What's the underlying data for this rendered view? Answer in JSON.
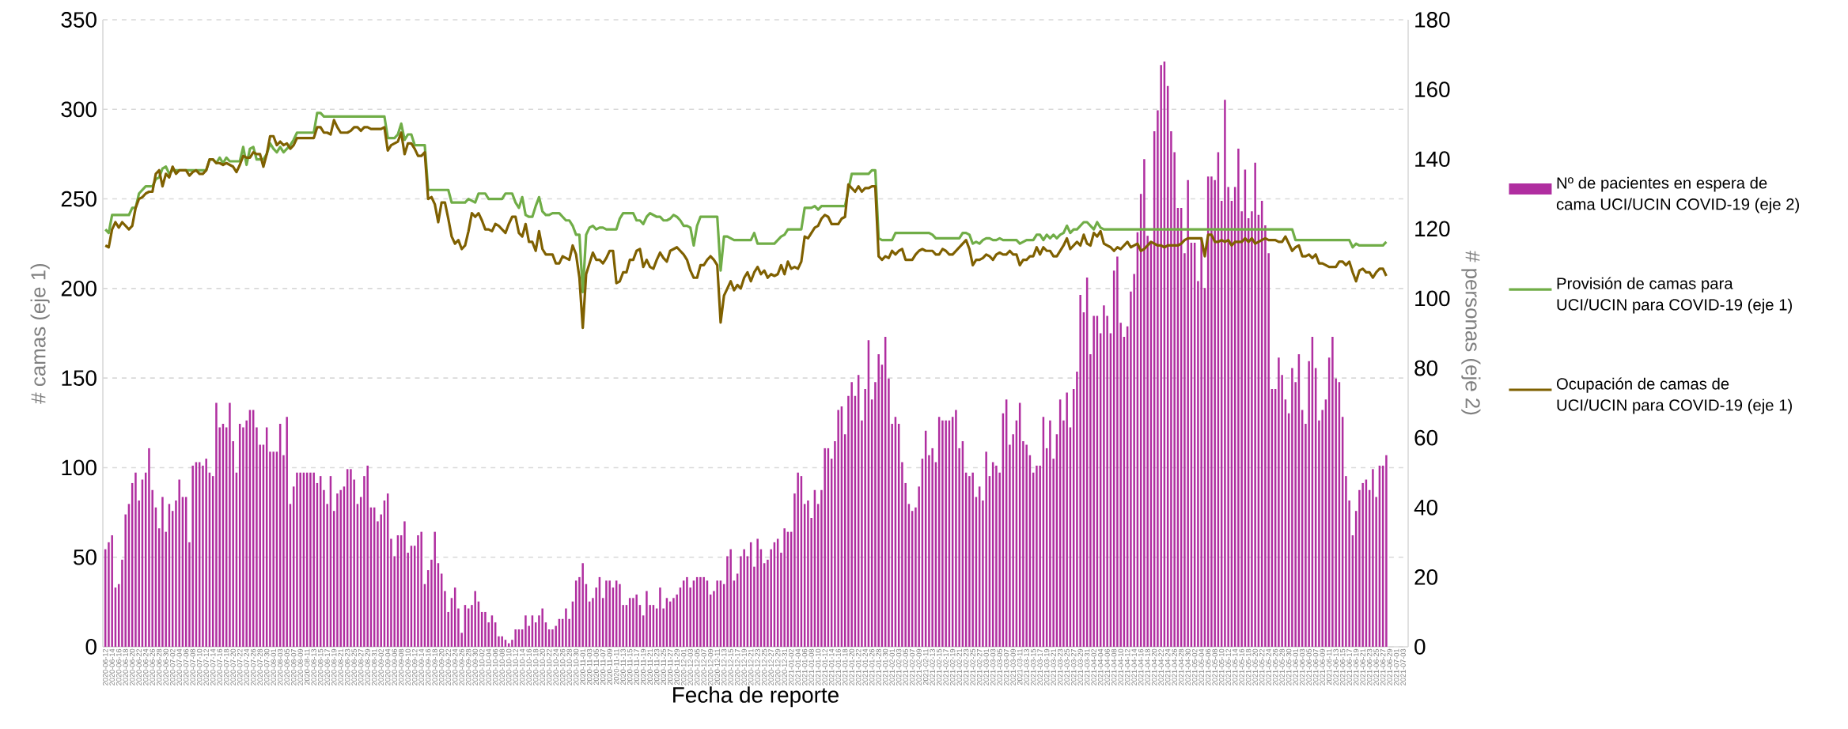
{
  "chart_data": {
    "type": "bar",
    "xlabel": "Fecha de reporte",
    "ylabel": "# camas (eje 1)",
    "y2label": "# personas (eje 2)",
    "grid": "y",
    "legend": "right",
    "ylim": [
      0,
      350
    ],
    "yticks": [
      0,
      50,
      100,
      150,
      200,
      250,
      300,
      350
    ],
    "y2lim": [
      0,
      180
    ],
    "y2ticks": [
      0,
      20,
      40,
      60,
      80,
      100,
      120,
      140,
      160,
      180
    ],
    "categories": [
      "2020-06-12",
      null,
      "2020-06-14",
      null,
      "2020-06-16",
      null,
      "2020-06-18",
      null,
      "2020-06-20",
      null,
      "2020-06-22",
      null,
      "2020-06-24",
      null,
      "2020-06-26",
      null,
      "2020-06-28",
      null,
      "2020-06-30",
      null,
      "2020-07-02",
      null,
      "2020-07-04",
      null,
      "2020-07-06",
      null,
      "2020-07-08",
      null,
      "2020-07-10",
      null,
      "2020-07-12",
      null,
      "2020-07-14",
      null,
      "2020-07-16",
      null,
      "2020-07-18",
      null,
      "2020-07-20",
      null,
      "2020-07-22",
      null,
      "2020-07-24",
      null,
      "2020-07-26",
      null,
      "2020-07-28",
      null,
      "2020-07-30",
      null,
      "2020-08-01",
      null,
      "2020-08-03",
      null,
      "2020-08-05",
      null,
      "2020-08-07",
      null,
      "2020-08-09",
      null,
      "2020-08-11",
      null,
      "2020-08-13",
      null,
      "2020-08-15",
      null,
      "2020-08-17",
      null,
      "2020-08-19",
      null,
      "2020-08-21",
      null,
      "2020-08-23",
      null,
      "2020-08-25",
      null,
      "2020-08-27",
      null,
      "2020-08-29",
      null,
      "2020-08-31",
      null,
      "2020-09-02",
      null,
      "2020-09-04",
      null,
      "2020-09-06",
      null,
      "2020-09-08",
      null,
      "2020-09-10",
      null,
      "2020-09-12",
      null,
      "2020-09-14",
      null,
      "2020-09-16",
      null,
      "2020-09-18",
      null,
      "2020-09-20",
      null,
      "2020-09-22",
      null,
      "2020-09-24",
      null,
      "2020-09-26",
      null,
      "2020-09-28",
      null,
      "2020-09-30",
      null,
      "2020-10-02",
      null,
      "2020-10-04",
      null,
      "2020-10-06",
      null,
      "2020-10-08",
      null,
      "2020-10-10",
      null,
      "2020-10-12",
      null,
      "2020-10-14",
      null,
      "2020-10-16",
      null,
      "2020-10-18",
      null,
      "2020-10-20",
      null,
      "2020-10-22",
      null,
      "2020-10-24",
      null,
      "2020-10-26",
      null,
      "2020-10-28",
      null,
      "2020-10-30",
      null,
      "2020-11-01",
      null,
      "2020-11-03",
      null,
      "2020-11-05",
      null,
      "2020-11-07",
      null,
      "2020-11-09",
      null,
      "2020-11-11",
      null,
      "2020-11-13",
      null,
      "2020-11-15",
      null,
      "2020-11-17",
      null,
      "2020-11-19",
      null,
      "2020-11-21",
      null,
      "2020-11-23",
      null,
      "2020-11-25",
      null,
      "2020-11-27",
      null,
      "2020-11-29",
      null,
      "2020-12-01",
      null,
      "2020-12-03",
      null,
      "2020-12-05",
      null,
      "2020-12-07",
      null,
      "2020-12-09",
      null,
      "2020-12-11",
      null,
      "2020-12-13",
      null,
      "2020-12-15",
      null,
      "2020-12-17",
      null,
      "2020-12-19",
      null,
      "2020-12-21",
      null,
      "2020-12-23",
      null,
      "2020-12-25",
      null,
      "2020-12-27",
      null,
      "2020-12-29",
      null,
      "2020-12-31",
      null,
      "2021-01-02",
      null,
      "2021-01-04",
      null,
      "2021-01-06",
      null,
      "2021-01-08",
      null,
      "2021-01-10",
      null,
      "2021-01-12",
      null,
      "2021-01-14",
      null,
      "2021-01-16",
      null,
      "2021-01-18",
      null,
      "2021-01-20",
      null,
      "2021-01-22",
      null,
      "2021-01-24",
      null,
      "2021-01-26",
      null,
      "2021-01-28",
      null,
      "2021-01-30",
      null,
      "2021-02-01",
      null,
      "2021-02-03",
      null,
      "2021-02-05",
      null,
      "2021-02-07",
      null,
      "2021-02-09",
      null,
      "2021-02-11",
      null,
      "2021-02-13",
      null,
      "2021-02-15",
      null,
      "2021-02-17",
      null,
      "2021-02-19",
      null,
      "2021-02-21",
      null,
      "2021-02-23",
      null,
      "2021-02-25",
      null,
      "2021-02-27",
      null,
      "2021-03-01",
      null,
      "2021-03-03",
      null,
      "2021-03-05",
      null,
      "2021-03-07",
      null,
      "2021-03-09",
      null,
      "2021-03-11",
      null,
      "2021-03-13",
      null,
      "2021-03-15",
      null,
      "2021-03-17",
      null,
      "2021-03-19",
      null,
      "2021-03-21",
      null,
      "2021-03-23",
      null,
      "2021-03-25",
      null,
      "2021-03-27",
      null,
      "2021-03-29",
      null,
      "2021-03-31",
      null,
      "2021-04-02",
      null,
      "2021-04-04",
      null,
      "2021-04-06",
      null,
      "2021-04-08",
      null,
      "2021-04-10",
      null,
      "2021-04-12",
      null,
      "2021-04-14",
      null,
      "2021-04-16",
      null,
      "2021-04-18",
      null,
      "2021-04-20",
      null,
      "2021-04-22",
      null,
      "2021-04-24",
      null,
      "2021-04-26",
      null,
      "2021-04-28",
      null,
      "2021-04-30",
      null,
      "2021-05-02",
      null,
      "2021-05-04",
      null,
      "2021-05-06",
      null,
      "2021-05-08",
      null,
      "2021-05-10",
      null,
      "2021-05-12",
      null,
      "2021-05-14",
      null,
      "2021-05-16",
      null,
      "2021-05-18",
      null,
      "2021-05-20",
      null,
      "2021-05-22",
      null,
      "2021-05-24",
      null,
      "2021-05-26",
      null,
      "2021-05-28",
      null,
      "2021-05-30",
      null,
      "2021-06-01",
      null,
      "2021-06-03",
      null,
      "2021-06-05",
      null,
      "2021-06-07",
      null,
      "2021-06-09",
      null,
      "2021-06-11",
      null,
      "2021-06-13",
      null,
      "2021-06-15",
      null,
      "2021-06-17",
      null,
      "2021-06-19",
      null,
      "2021-06-21",
      null,
      "2021-06-23",
      null,
      "2021-06-25",
      null,
      "2021-06-27",
      null,
      "2021-06-29",
      null,
      "2021-07-01",
      null,
      "2021-07-03"
    ],
    "series": [
      {
        "name": "Nº de pacientes en espera de cama UCI/UCIN COVID-19 (eje 2)",
        "axis": "y2",
        "color": "#B02EA0",
        "values": [
          28,
          30,
          32,
          17,
          18,
          25,
          38,
          41,
          47,
          50,
          42,
          48,
          50,
          57,
          45,
          40,
          34,
          43,
          33,
          41,
          39,
          42,
          48,
          43,
          43,
          30,
          52,
          53,
          53,
          52,
          54,
          50,
          49,
          70,
          63,
          64,
          63,
          70,
          59,
          50,
          64,
          63,
          65,
          68,
          68,
          63,
          58,
          58,
          63,
          56,
          56,
          56,
          64,
          55,
          66,
          41,
          46,
          50,
          50,
          50,
          50,
          50,
          50,
          47,
          49,
          45,
          41,
          49,
          39,
          44,
          45,
          46,
          51,
          51,
          48,
          41,
          43,
          49,
          52,
          40,
          40,
          36,
          38,
          42,
          44,
          31,
          26,
          32,
          32,
          36,
          27,
          29,
          29,
          32,
          33,
          18,
          22,
          25,
          33,
          24,
          21,
          16,
          10,
          14,
          17,
          11,
          4,
          12,
          11,
          12,
          16,
          13,
          10,
          10,
          7,
          9,
          7,
          3,
          3,
          2,
          1,
          2,
          5,
          5,
          5,
          9,
          6,
          9,
          7,
          9,
          11,
          7,
          5,
          5,
          6,
          8,
          8,
          11,
          8,
          13,
          19,
          20,
          24,
          18,
          13,
          14,
          17,
          20,
          14,
          19,
          19,
          17,
          19,
          18,
          12,
          12,
          14,
          14,
          15,
          12,
          9,
          16,
          12,
          12,
          11,
          17,
          11,
          14,
          13,
          14,
          15,
          17,
          19,
          20,
          17,
          19,
          20,
          20,
          20,
          19,
          15,
          16,
          19,
          19,
          18,
          26,
          28,
          19,
          21,
          26,
          28,
          26,
          30,
          23,
          31,
          28,
          24,
          25,
          28,
          30,
          31,
          27,
          34,
          33,
          33,
          44,
          50,
          49,
          41,
          42,
          37,
          45,
          41,
          45,
          57,
          57,
          54,
          59,
          68,
          69,
          61,
          72,
          76,
          72,
          78,
          65,
          74,
          88,
          71,
          76,
          84,
          81,
          89,
          77,
          64,
          66,
          64,
          53,
          47,
          41,
          39,
          40,
          46,
          54,
          62,
          55,
          57,
          53,
          66,
          65,
          65,
          65,
          66,
          68,
          57,
          59,
          50,
          49,
          50,
          43,
          46,
          42,
          56,
          49,
          53,
          52,
          50,
          67,
          71,
          58,
          61,
          65,
          70,
          59,
          58,
          55,
          50,
          52,
          52,
          66,
          57,
          65,
          54,
          61,
          71,
          65,
          73,
          63,
          74,
          79,
          101,
          96,
          106,
          84,
          95,
          95,
          90,
          98,
          95,
          90,
          108,
          112,
          93,
          89,
          92,
          102,
          107,
          119,
          130,
          140,
          118,
          116,
          148,
          154,
          167,
          168,
          161,
          148,
          142,
          126,
          126,
          113,
          134,
          116,
          116,
          105,
          117,
          103,
          135,
          135,
          134,
          142,
          128,
          157,
          132,
          128,
          132,
          143,
          125,
          137,
          123,
          125,
          139,
          124,
          128,
          121,
          113,
          74,
          74,
          83,
          78,
          71,
          67,
          80,
          76,
          84,
          68,
          64,
          82,
          89,
          80,
          65,
          68,
          71,
          83,
          89,
          77,
          76,
          66,
          49,
          42,
          32,
          39,
          45,
          47,
          48,
          45,
          51,
          43,
          52,
          52,
          55,
          null,
          null,
          null,
          null,
          null
        ]
      },
      {
        "name": "Provisión de camas para UCI/UCIN para COVID-19 (eje 1)",
        "type": "line",
        "color": "#70AD47",
        "values": [
          233,
          231,
          241,
          241,
          241,
          241,
          241,
          241,
          245,
          245,
          253,
          255,
          257,
          257,
          257,
          261,
          262,
          267,
          268,
          264,
          266,
          266,
          266,
          266,
          266,
          266,
          266,
          266,
          266,
          266,
          266,
          272,
          272,
          270,
          273,
          270,
          273,
          271,
          271,
          271,
          271,
          279,
          269,
          278,
          279,
          272,
          272,
          272,
          275,
          281,
          278,
          276,
          279,
          276,
          278,
          280,
          283,
          287,
          287,
          287,
          287,
          287,
          287,
          298,
          298,
          296,
          296,
          296,
          296,
          296,
          296,
          296,
          296,
          296,
          296,
          296,
          296,
          296,
          296,
          296,
          296,
          296,
          296,
          296,
          284,
          284,
          284,
          286,
          292,
          283,
          286,
          286,
          280,
          280,
          280,
          280,
          255,
          255,
          255,
          255,
          255,
          255,
          255,
          248,
          248,
          248,
          248,
          248,
          250,
          249,
          248,
          253,
          253,
          253,
          250,
          250,
          250,
          250,
          250,
          253,
          253,
          253,
          248,
          245,
          251,
          241,
          240,
          240,
          246,
          251,
          243,
          241,
          241,
          242,
          242,
          242,
          240,
          238,
          238,
          235,
          230,
          230,
          198,
          230,
          234,
          235,
          233,
          234,
          234,
          233,
          233,
          233,
          233,
          239,
          242,
          242,
          242,
          242,
          238,
          238,
          236,
          240,
          242,
          241,
          240,
          240,
          238,
          238,
          239,
          241,
          240,
          238,
          235,
          235,
          234,
          224,
          235,
          240,
          240,
          240,
          240,
          240,
          240,
          210,
          229,
          229,
          228,
          227,
          227,
          227,
          227,
          227,
          227,
          231,
          225,
          225,
          225,
          225,
          225,
          225,
          227,
          229,
          230,
          233,
          233,
          233,
          233,
          233,
          245,
          245,
          245,
          246,
          244,
          246,
          246,
          246,
          246,
          246,
          246,
          246,
          246,
          255,
          264,
          264,
          264,
          264,
          264,
          264,
          266,
          266,
          228,
          227,
          227,
          227,
          227,
          231,
          231,
          231,
          231,
          231,
          231,
          231,
          231,
          231,
          231,
          231,
          230,
          228,
          228,
          228,
          228,
          228,
          228,
          228,
          228,
          231,
          231,
          230,
          225,
          226,
          225,
          227,
          228,
          228,
          227,
          227,
          228,
          227,
          227,
          227,
          227,
          227,
          225,
          226,
          227,
          227,
          227,
          230,
          230,
          227,
          230,
          228,
          230,
          228,
          230,
          231,
          235,
          231,
          233,
          233,
          235,
          237,
          237,
          235,
          233,
          237,
          234,
          233,
          233,
          233,
          233,
          233,
          233,
          233,
          233,
          233,
          233,
          233,
          233,
          233,
          233,
          233,
          233,
          233,
          233,
          233,
          233,
          233,
          233,
          233,
          233,
          233,
          233,
          233,
          233,
          233,
          233,
          233,
          233,
          233,
          233,
          233,
          233,
          233,
          233,
          233,
          233,
          233,
          233,
          233,
          233,
          233,
          233,
          233,
          233,
          233,
          233,
          233,
          233,
          233,
          233,
          233,
          233,
          233,
          227,
          227,
          227,
          227,
          227,
          227,
          227,
          227,
          227,
          227,
          227,
          227,
          227,
          227,
          227,
          227,
          227,
          223,
          225,
          224,
          224,
          224,
          224,
          224,
          224,
          224,
          224,
          226,
          null,
          null,
          null,
          null,
          null
        ]
      },
      {
        "name": "Ocupación de camas de UCI/UCIN para COVID-19 (eje 1)",
        "type": "line",
        "color": "#7F6000",
        "values": [
          224,
          223,
          233,
          237,
          234,
          237,
          235,
          233,
          235,
          245,
          250,
          251,
          253,
          254,
          254,
          264,
          266,
          257,
          264,
          262,
          268,
          264,
          266,
          266,
          266,
          263,
          265,
          266,
          264,
          264,
          266,
          272,
          272,
          270,
          270,
          269,
          270,
          269,
          268,
          265,
          269,
          274,
          273,
          273,
          276,
          275,
          275,
          268,
          275,
          285,
          285,
          280,
          282,
          280,
          281,
          278,
          280,
          284,
          284,
          284,
          284,
          284,
          284,
          290,
          290,
          287,
          287,
          286,
          294,
          290,
          287,
          287,
          287,
          288,
          290,
          290,
          288,
          290,
          290,
          289,
          289,
          289,
          289,
          290,
          277,
          280,
          281,
          282,
          287,
          275,
          281,
          281,
          278,
          274,
          274,
          276,
          250,
          251,
          247,
          237,
          248,
          248,
          239,
          229,
          225,
          227,
          222,
          224,
          232,
          242,
          240,
          242,
          238,
          233,
          233,
          232,
          236,
          235,
          233,
          231,
          236,
          240,
          240,
          231,
          229,
          236,
          226,
          226,
          221,
          232,
          222,
          219,
          219,
          219,
          214,
          214,
          218,
          217,
          216,
          224,
          219,
          206,
          178,
          208,
          214,
          220,
          216,
          216,
          214,
          217,
          221,
          221,
          203,
          204,
          209,
          209,
          216,
          216,
          221,
          222,
          212,
          216,
          212,
          211,
          216,
          220,
          217,
          215,
          221,
          222,
          223,
          221,
          219,
          216,
          210,
          206,
          206,
          213,
          213,
          216,
          218,
          216,
          213,
          181,
          196,
          200,
          204,
          199,
          202,
          200,
          206,
          209,
          204,
          209,
          212,
          208,
          210,
          206,
          208,
          207,
          208,
          213,
          208,
          215,
          211,
          212,
          211,
          215,
          229,
          228,
          231,
          234,
          235,
          239,
          241,
          240,
          236,
          236,
          236,
          239,
          240,
          258,
          256,
          254,
          257,
          254,
          256,
          256,
          257,
          257,
          218,
          216,
          218,
          217,
          221,
          219,
          221,
          222,
          216,
          216,
          216,
          219,
          221,
          222,
          221,
          221,
          221,
          219,
          219,
          222,
          221,
          219,
          219,
          221,
          223,
          225,
          227,
          222,
          213,
          216,
          216,
          217,
          219,
          218,
          216,
          219,
          220,
          219,
          219,
          221,
          219,
          219,
          213,
          216,
          216,
          218,
          218,
          223,
          219,
          223,
          221,
          221,
          218,
          218,
          221,
          224,
          228,
          222,
          224,
          226,
          224,
          230,
          225,
          224,
          231,
          229,
          232,
          225,
          224,
          223,
          221,
          223,
          222,
          224,
          226,
          223,
          224,
          225,
          221,
          222,
          224,
          226,
          225,
          224,
          224,
          223,
          224,
          224,
          224,
          224,
          225,
          227,
          228,
          228,
          228,
          228,
          228,
          218,
          230,
          230,
          226,
          226,
          227,
          226,
          227,
          224,
          226,
          226,
          226,
          228,
          226,
          228,
          225,
          226,
          227,
          228,
          227,
          227,
          227,
          226,
          226,
          229,
          225,
          221,
          223,
          224,
          218,
          218,
          219,
          217,
          219,
          214,
          214,
          213,
          212,
          212,
          212,
          215,
          215,
          213,
          215,
          209,
          204,
          210,
          211,
          209,
          209,
          206,
          209,
          211,
          211,
          207,
          null,
          null,
          null,
          null,
          null
        ]
      }
    ]
  }
}
